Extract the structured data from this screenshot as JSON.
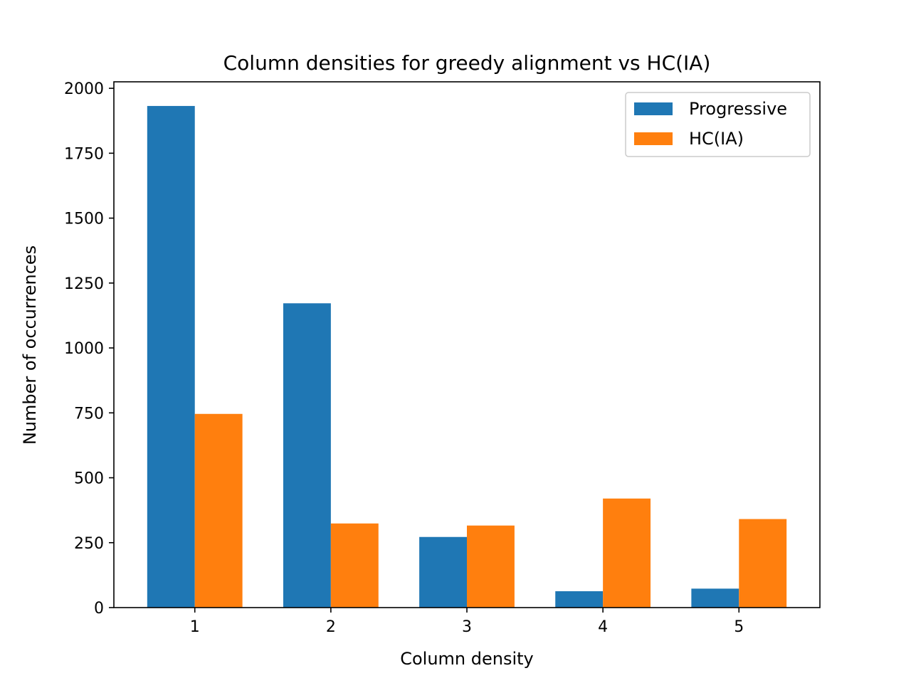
{
  "chart_data": {
    "type": "bar",
    "title": "Column densities for greedy alignment vs HC(IA)",
    "xlabel": "Column density",
    "ylabel": "Number of occurrences",
    "categories": [
      "1",
      "2",
      "3",
      "4",
      "5"
    ],
    "ylim": [
      0,
      2025
    ],
    "yticks": [
      0,
      250,
      500,
      750,
      1000,
      1250,
      1500,
      1750,
      2000
    ],
    "grid": false,
    "legend_position": "top-right",
    "series": [
      {
        "name": "Progressive",
        "color": "#1f77b4",
        "values": [
          1932,
          1172,
          272,
          63,
          73
        ]
      },
      {
        "name": "HC(IA)",
        "color": "#ff7f0e",
        "values": [
          746,
          324,
          316,
          420,
          341
        ]
      }
    ]
  }
}
